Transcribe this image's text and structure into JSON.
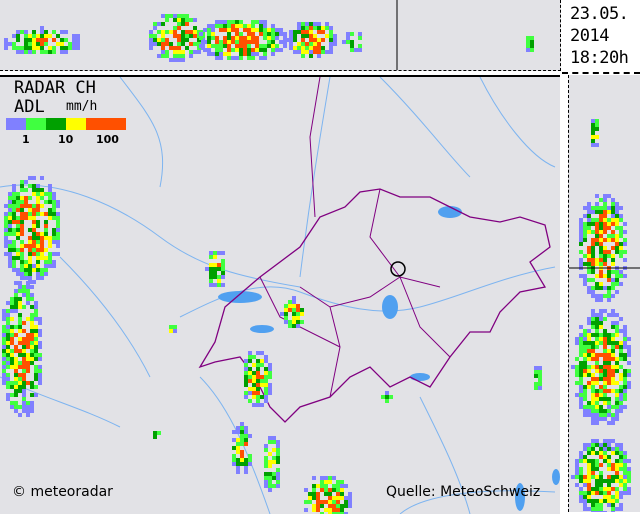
{
  "title": "RADAR CH",
  "product": "ADL",
  "unit": "mm/h",
  "date": "23.05.",
  "year": "2014",
  "time": "18:20h",
  "legend": {
    "colors": [
      "#8080ff",
      "#40ff40",
      "#00a000",
      "#ffff00",
      "#ff5000"
    ],
    "ticks": [
      "1",
      "10",
      "100"
    ]
  },
  "credit_left": "© meteoradar",
  "credit_right": "Quelle: MeteoSchweiz",
  "colors": {
    "background": "#e2e2e6",
    "rivers": "#7db4f0",
    "borders": "#800080",
    "lakes": "#50a0f0"
  }
}
